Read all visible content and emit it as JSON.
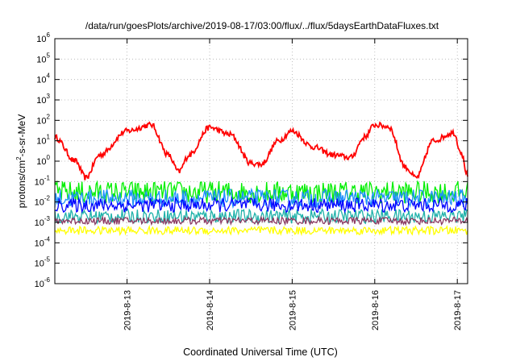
{
  "chart_data": {
    "type": "line",
    "title": "/data/run/goesPlots/archive/2019-08-17/03:00/flux/../flux/5daysEarthDataFluxes.txt",
    "xlabel": "Coordinated Universal Time (UTC)",
    "ylabel": {
      "prefix": "protons/cm",
      "sup": "2",
      "suffix": "-s-sr-MeV"
    },
    "yscale": "log",
    "ylim": [
      1e-06,
      1000000.0
    ],
    "xlim": [
      "2019-08-12 03:00",
      "2019-08-17 03:00"
    ],
    "x_ticks": [
      "2019-8-13",
      "2019-8-14",
      "2019-8-15",
      "2019-8-16",
      "2019-8-17"
    ],
    "y_ticks": [
      {
        "base": "10",
        "exp": "6"
      },
      {
        "base": "10",
        "exp": "5"
      },
      {
        "base": "10",
        "exp": "4"
      },
      {
        "base": "10",
        "exp": "3"
      },
      {
        "base": "10",
        "exp": "2"
      },
      {
        "base": "10",
        "exp": "1"
      },
      {
        "base": "10",
        "exp": "0"
      },
      {
        "base": "10",
        "exp": "-1"
      },
      {
        "base": "10",
        "exp": "-2"
      },
      {
        "base": "10",
        "exp": "-3"
      },
      {
        "base": "10",
        "exp": "-4"
      },
      {
        "base": "10",
        "exp": "-5"
      },
      {
        "base": "10",
        "exp": "-6"
      }
    ],
    "grid": true,
    "legend": "none",
    "series": [
      {
        "color": "#ff0000",
        "kind": "smooth",
        "x": [
          "2019-08-12 03:00",
          "2019-08-12 09:00",
          "2019-08-12 12:00",
          "2019-08-12 16:00",
          "2019-08-13 00:00",
          "2019-08-13 07:00",
          "2019-08-13 12:00",
          "2019-08-13 15:00",
          "2019-08-13 18:00",
          "2019-08-14 00:00",
          "2019-08-14 06:00",
          "2019-08-14 12:00",
          "2019-08-14 15:00",
          "2019-08-14 20:00",
          "2019-08-15 00:00",
          "2019-08-15 06:00",
          "2019-08-15 12:00",
          "2019-08-15 17:00",
          "2019-08-15 21:00",
          "2019-08-16 00:00",
          "2019-08-16 04:00",
          "2019-08-16 09:00",
          "2019-08-16 12:00",
          "2019-08-16 17:00",
          "2019-08-16 23:00",
          "2019-08-17 01:00",
          "2019-08-17 03:00"
        ],
        "y": [
          15,
          1,
          0.15,
          2,
          30,
          60,
          2,
          0.3,
          2,
          45,
          20,
          0.8,
          0.7,
          10,
          30,
          5,
          2,
          1.5,
          15,
          60,
          50,
          0.5,
          0.15,
          10,
          25,
          3,
          0.2
        ]
      },
      {
        "color": "#00ee00",
        "kind": "noisy",
        "x": [
          "2019-08-12 03:00",
          "2019-08-17 03:00"
        ],
        "y": [
          0.03,
          0.03
        ]
      },
      {
        "color": "#1e90ff",
        "kind": "noisy",
        "x": [
          "2019-08-12 03:00",
          "2019-08-17 03:00"
        ],
        "y": [
          0.015,
          0.015
        ]
      },
      {
        "color": "#20b2aa",
        "kind": "noisy",
        "x": [
          "2019-08-12 03:00",
          "2019-08-17 03:00"
        ],
        "y": [
          0.002,
          0.002
        ]
      },
      {
        "color": "#0000ff",
        "kind": "noisy",
        "x": [
          "2019-08-12 03:00",
          "2019-08-17 03:00"
        ],
        "y": [
          0.007,
          0.007
        ]
      },
      {
        "color": "#8b3a62",
        "kind": "noisy",
        "x": [
          "2019-08-12 03:00",
          "2019-08-17 03:00"
        ],
        "y": [
          0.0012,
          0.0012
        ]
      },
      {
        "color": "#ffff00",
        "kind": "noisy",
        "x": [
          "2019-08-12 03:00",
          "2019-08-17 03:00"
        ],
        "y": [
          0.0004,
          0.0004
        ]
      }
    ]
  }
}
